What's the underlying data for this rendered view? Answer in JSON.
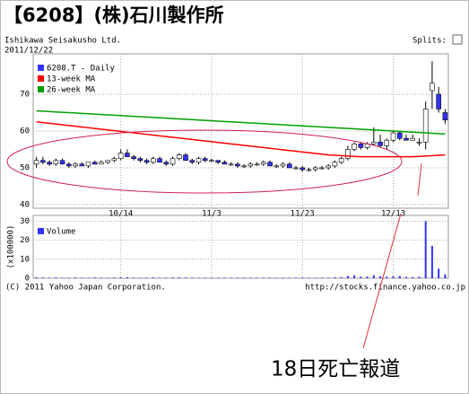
{
  "chart_data": [
    {
      "type": "candlestick",
      "title": "【6208】(株)石川製作所",
      "subtitle": "Ishikawa Seisakusho Ltd.",
      "date": "2011/12/22",
      "annotation": "18日死亡報道",
      "categories": [
        null,
        null,
        null,
        null,
        null,
        null,
        null,
        null,
        null,
        null,
        null,
        null,
        null,
        "10/14",
        null,
        null,
        null,
        null,
        null,
        null,
        null,
        null,
        null,
        null,
        null,
        null,
        null,
        "11/3",
        null,
        null,
        null,
        null,
        null,
        null,
        null,
        null,
        null,
        null,
        null,
        null,
        null,
        "11/23",
        null,
        null,
        null,
        null,
        null,
        null,
        null,
        null,
        null,
        null,
        null,
        null,
        null,
        "12/13",
        null,
        null,
        null,
        null,
        null,
        null,
        null,
        null
      ],
      "ylim": [
        39,
        81
      ],
      "yticks": [
        40,
        50,
        60,
        70
      ],
      "grid": true,
      "up_color": "#ffffff",
      "series": [
        {
          "name": "6208.T - Daily",
          "color": "#3333ff",
          "open": [
            51,
            52,
            51.5,
            51,
            52,
            51,
            50.5,
            51,
            50.5,
            51.5,
            51,
            51.5,
            52,
            52.5,
            54,
            53,
            52.5,
            52,
            51.5,
            52.5,
            51.5,
            51,
            52.5,
            53.5,
            52,
            51.5,
            52.5,
            52,
            52,
            51.5,
            51,
            51,
            50.5,
            50.5,
            51,
            51,
            51.5,
            50.5,
            50.5,
            51,
            50,
            50,
            49.5,
            49.5,
            50,
            50,
            50.5,
            51.5,
            52.5,
            55,
            56.5,
            55.5,
            56.5,
            57,
            56,
            57.5,
            59.5,
            58,
            57.5,
            57,
            57,
            71,
            70,
            65
          ],
          "high": [
            53,
            53,
            52,
            52.5,
            52.5,
            51.5,
            51.5,
            51.5,
            51.5,
            52,
            52,
            52,
            53,
            55,
            55,
            53.5,
            53,
            52.5,
            53,
            53,
            52,
            53,
            54,
            54,
            52.5,
            53,
            53,
            52.5,
            52,
            52,
            51.5,
            51.5,
            51,
            51.5,
            51.5,
            52,
            52,
            51,
            51.5,
            51.5,
            50.5,
            50.5,
            50,
            50.5,
            50.5,
            51,
            52,
            53,
            56,
            57,
            57,
            57,
            61,
            59,
            58,
            60,
            60,
            59,
            59,
            58,
            68,
            79,
            72,
            66
          ],
          "low": [
            50,
            51,
            50.5,
            50.5,
            51,
            50,
            50,
            50.5,
            50,
            51,
            51,
            51,
            51.5,
            52,
            53,
            52,
            51.5,
            51,
            51,
            51.5,
            50.5,
            50.5,
            52,
            52,
            51,
            51,
            51.5,
            51.5,
            51,
            51,
            50.5,
            50,
            50,
            50,
            50.5,
            50.5,
            50.5,
            50,
            50,
            50,
            49.5,
            49,
            49,
            49,
            49.5,
            49.5,
            50,
            51,
            52,
            54.5,
            55,
            55,
            56,
            55.5,
            55,
            57,
            57.5,
            57.5,
            57.5,
            56,
            55,
            66,
            65,
            62
          ],
          "close": [
            52,
            51.5,
            51,
            52,
            51,
            50.5,
            51,
            50.5,
            51.5,
            51,
            51.5,
            52,
            52.5,
            54,
            53,
            52.5,
            52,
            51.5,
            52.5,
            51.5,
            51,
            52.5,
            53.5,
            52,
            51.5,
            52.5,
            52,
            52,
            51.5,
            51,
            51,
            50.5,
            50.5,
            51,
            51,
            51.5,
            50.5,
            50.5,
            51,
            50,
            50,
            49.5,
            49.5,
            50,
            50,
            50.5,
            51.5,
            52.5,
            55,
            56.5,
            55.5,
            56.5,
            57,
            56,
            57.5,
            59.5,
            58,
            57.5,
            58,
            57,
            66,
            73,
            66,
            63
          ]
        },
        {
          "name": "13-week MA",
          "color": "#ff0000",
          "values": [
            62.5,
            62.3,
            62.1,
            61.9,
            61.7,
            61.5,
            61.3,
            61.1,
            60.9,
            60.7,
            60.5,
            60.3,
            60.1,
            59.9,
            59.7,
            59.5,
            59.3,
            59.1,
            58.9,
            58.7,
            58.5,
            58.3,
            58.1,
            57.9,
            57.7,
            57.5,
            57.3,
            57.1,
            56.9,
            56.7,
            56.5,
            56.3,
            56.1,
            55.9,
            55.7,
            55.5,
            55.3,
            55.1,
            54.9,
            54.7,
            54.5,
            54.3,
            54.1,
            53.9,
            53.7,
            53.5,
            53.4,
            53.3,
            53.2,
            53.1,
            53,
            53,
            53,
            53,
            53,
            53,
            53,
            53,
            53,
            53.1,
            53.2,
            53.3,
            53.4,
            53.5
          ]
        },
        {
          "name": "26-week MA",
          "color": "#00a000",
          "values": [
            65.5,
            65.4,
            65.3,
            65.2,
            65.1,
            65,
            64.9,
            64.8,
            64.7,
            64.6,
            64.5,
            64.4,
            64.3,
            64.2,
            64.1,
            64,
            63.9,
            63.8,
            63.7,
            63.6,
            63.5,
            63.4,
            63.3,
            63.2,
            63.1,
            63,
            62.9,
            62.8,
            62.7,
            62.6,
            62.5,
            62.4,
            62.3,
            62.2,
            62.1,
            62,
            61.9,
            61.8,
            61.7,
            61.6,
            61.5,
            61.4,
            61.3,
            61.2,
            61.1,
            61,
            60.9,
            60.8,
            60.7,
            60.6,
            60.5,
            60.4,
            60.3,
            60.2,
            60.1,
            60,
            59.9,
            59.8,
            59.7,
            59.6,
            59.5,
            59.4,
            59.3,
            59.2
          ]
        }
      ]
    },
    {
      "type": "bar",
      "y_label": "(x100000)",
      "ylim": [
        0,
        33
      ],
      "yticks": [
        0,
        10,
        20,
        30
      ],
      "grid": true,
      "series": [
        {
          "name": "Volume",
          "color": "#3333ff",
          "values": [
            0.5,
            0.4,
            0.3,
            0.4,
            0.3,
            0.3,
            0.4,
            0.3,
            0.3,
            0.4,
            0.3,
            0.3,
            0.4,
            0.6,
            0.5,
            0.3,
            0.3,
            0.3,
            0.4,
            0.3,
            0.3,
            0.4,
            0.5,
            0.4,
            0.3,
            0.3,
            0.3,
            0.3,
            0.3,
            0.3,
            0.3,
            0.3,
            0.3,
            0.3,
            0.3,
            0.3,
            0.3,
            0.3,
            0.3,
            0.3,
            0.3,
            0.4,
            0.3,
            0.3,
            0.3,
            0.3,
            0.5,
            0.6,
            1.2,
            1.5,
            0.8,
            0.9,
            1.6,
            1.0,
            0.8,
            1.1,
            1.2,
            0.7,
            0.6,
            0.8,
            30,
            17,
            5,
            2
          ]
        }
      ]
    }
  ],
  "header": {
    "splits": "Splits:"
  },
  "footer": {
    "copyright": "(C) 2011 Yahoo Japan Corporation.",
    "url": "http://stocks.finance.yahoo.co.jp"
  }
}
